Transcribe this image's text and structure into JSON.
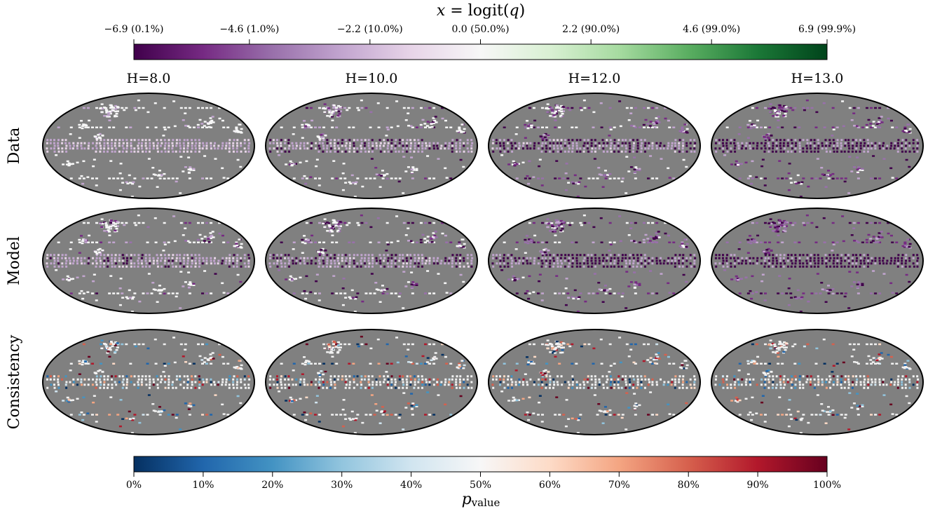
{
  "chart_data": {
    "type": "heatmap",
    "layout": "grid of mollweide sky maps",
    "columns": [
      "H=8.0",
      "H=10.0",
      "H=12.0",
      "H=13.0"
    ],
    "rows": [
      "Data",
      "Model",
      "Consistency"
    ],
    "top_colorbar": {
      "label": "x = logit(q)",
      "label_main": "x",
      "label_eq": " = logit(",
      "label_var": "q",
      "label_close": ")",
      "range": [
        -6.9,
        6.9
      ],
      "ticks": [
        -6.9,
        -4.6,
        -2.2,
        0.0,
        2.2,
        4.6,
        6.9
      ],
      "tick_labels": [
        "−6.9 (0.1%)",
        "−4.6 (1.0%)",
        "−2.2 (10.0%)",
        "0.0 (50.0%)",
        "2.2 (90.0%)",
        "4.6 (99.0%)",
        "6.9 (99.9%)"
      ],
      "colormap": "PRGn",
      "colors": [
        "#40004b",
        "#762a83",
        "#9970ab",
        "#c2a5cf",
        "#e7d4e8",
        "#f7f7f7",
        "#d9f0d3",
        "#a6dba0",
        "#5aae61",
        "#1b7837",
        "#00441b"
      ]
    },
    "bottom_colorbar": {
      "label": "p_value",
      "label_main": "p",
      "label_sub": "value",
      "range": [
        0,
        100
      ],
      "ticks": [
        0,
        10,
        20,
        30,
        40,
        50,
        60,
        70,
        80,
        90,
        100
      ],
      "tick_labels": [
        "0%",
        "10%",
        "20%",
        "30%",
        "40%",
        "50%",
        "60%",
        "70%",
        "80%",
        "90%",
        "100%"
      ],
      "colormap": "RdBu_r",
      "colors": [
        "#053061",
        "#2166ac",
        "#4393c3",
        "#92c5de",
        "#d1e5f0",
        "#f7f7f7",
        "#fddbc7",
        "#f4a582",
        "#d6604d",
        "#b2182b",
        "#67001f"
      ]
    },
    "background_color": "#808080"
  }
}
